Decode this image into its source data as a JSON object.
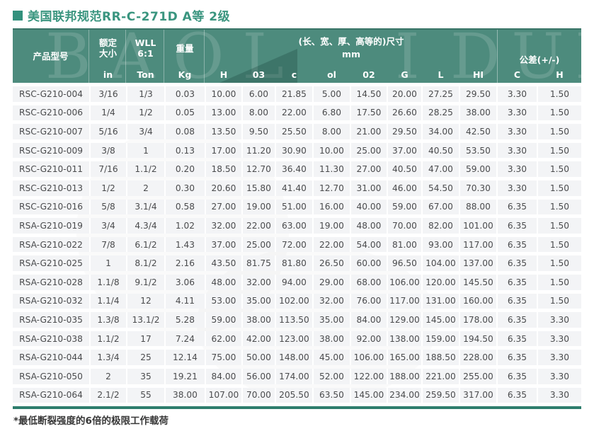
{
  "page": {
    "title": "美国联邦规范RR-C-271D A等 2级",
    "footnote": "*最低断裂强度的6倍的极限工作载荷"
  },
  "colors": {
    "header_teal": "#4d8b7d",
    "accent_bar": "#2e7d6d",
    "title_green": "#3a957f",
    "row_bg": "#f3f4f6",
    "body_text": "#4a4b4d"
  },
  "watermark": {
    "left_letters": "BAOL",
    "mid_letter": "I",
    "right_letters": "DUN"
  },
  "table": {
    "header": {
      "product_model": "产品型号",
      "rated_size_line1": "额定",
      "rated_size_line2": "大小",
      "rated_size_unit": "in",
      "wll_line1": "WLL",
      "wll_line2": "6:1",
      "wll_unit": "Ton",
      "weight": "重量",
      "weight_unit": "Kg",
      "dims_title": "(长、宽、厚、高等的)尺寸",
      "dims_unit": "mm",
      "dim_cols": [
        "H",
        "03",
        "c",
        "ol",
        "02",
        "G",
        "L",
        "HI"
      ],
      "tolerance_title": "公差(+/-)",
      "tolerance_cols": [
        "C",
        "H"
      ]
    },
    "rows": [
      [
        "RSC-G210-004",
        "3/16",
        "1/3",
        "0.03",
        "10.00",
        "6.00",
        "21.85",
        "5.00",
        "14.50",
        "20.00",
        "27.25",
        "29.50",
        "3.30",
        "1.50"
      ],
      [
        "RSC-G210-006",
        "1/4",
        "1/2",
        "0.05",
        "13.00",
        "8.00",
        "22.00",
        "6.80",
        "17.50",
        "26.60",
        "28.25",
        "38.00",
        "3.30",
        "1.50"
      ],
      [
        "RSC-G210-007",
        "5/16",
        "3/4",
        "0.08",
        "13.50",
        "9.50",
        "25.50",
        "8.00",
        "21.00",
        "29.50",
        "34.00",
        "42.50",
        "3.30",
        "1.50"
      ],
      [
        "RSC-G210-009",
        "3/8",
        "1",
        "0.13",
        "17.00",
        "11.20",
        "30.90",
        "10.00",
        "25.00",
        "37.00",
        "40.50",
        "53.50",
        "3.30",
        "1.50"
      ],
      [
        "RSC-G210-011",
        "7/16",
        "1.1/2",
        "0.20",
        "18.50",
        "12.70",
        "36.40",
        "11.30",
        "27.00",
        "40.50",
        "47.00",
        "59.00",
        "3.30",
        "1.50"
      ],
      [
        "RSC-G210-013",
        "1/2",
        "2",
        "0.30",
        "20.60",
        "15.80",
        "41.40",
        "12.70",
        "31.00",
        "46.00",
        "54.50",
        "70.30",
        "3.30",
        "1.50"
      ],
      [
        "RSC-G210-016",
        "5/8",
        "3.1/4",
        "0.58",
        "27.00",
        "19.00",
        "51.00",
        "16.00",
        "40.00",
        "59.00",
        "67.00",
        "88.00",
        "6.35",
        "1.50"
      ],
      [
        "RSA-G210-019",
        "3/4",
        "4.3/4",
        "1.02",
        "32.00",
        "22.00",
        "63.00",
        "19.00",
        "48.00",
        "70.00",
        "82.00",
        "101.00",
        "6.35",
        "1.50"
      ],
      [
        "RSA-G210-022",
        "7/8",
        "6.1/2",
        "1.43",
        "37.00",
        "25.00",
        "72.00",
        "22.00",
        "54.00",
        "81.00",
        "93.00",
        "117.00",
        "6.35",
        "1.50"
      ],
      [
        "RSA-G210-025",
        "1",
        "8.1/2",
        "2.16",
        "43.50",
        "81.75",
        "81.80",
        "26.50",
        "60.00",
        "96.50",
        "104.00",
        "137.00",
        "6.35",
        "1.50"
      ],
      [
        "RSA-G210-028",
        "1.1/8",
        "9.1/2",
        "3.06",
        "48.00",
        "32.00",
        "94.00",
        "29.00",
        "68.00",
        "106.00",
        "120.00",
        "145.50",
        "6.35",
        "1.50"
      ],
      [
        "RSA-G210-032",
        "1.1/4",
        "12",
        "4.11",
        "53.00",
        "35.00",
        "102.00",
        "32.00",
        "76.00",
        "117.00",
        "131.00",
        "160.00",
        "6.35",
        "1.50"
      ],
      [
        "RSA-G210-035",
        "1.3/8",
        "13.1/2",
        "5.28",
        "59.00",
        "38.00",
        "113.50",
        "35.00",
        "84.00",
        "129.00",
        "145.00",
        "178.00",
        "6.35",
        "3.30"
      ],
      [
        "RSA-G210-038",
        "1.1/2",
        "17",
        "7.24",
        "62.00",
        "42.00",
        "123.00",
        "38.00",
        "92.00",
        "138.00",
        "159.00",
        "194.50",
        "6.35",
        "3.30"
      ],
      [
        "RSA-G210-044",
        "1.3/4",
        "25",
        "12.14",
        "75.00",
        "50.00",
        "148.00",
        "45.00",
        "106.00",
        "165.00",
        "188.50",
        "228.00",
        "6.35",
        "3.30"
      ],
      [
        "RSA-G210-050",
        "2",
        "35",
        "19.21",
        "84.00",
        "56.00",
        "174.00",
        "52.00",
        "122.00",
        "188.00",
        "221.00",
        "255.00",
        "6.35",
        "3.30"
      ],
      [
        "RSA-G210-064",
        "2.1/2",
        "55",
        "38.00",
        "107.00",
        "70.00",
        "205.50",
        "63.50",
        "145.00",
        "234.00",
        "259.50",
        "317.00",
        "6.35",
        "3.30"
      ]
    ]
  }
}
